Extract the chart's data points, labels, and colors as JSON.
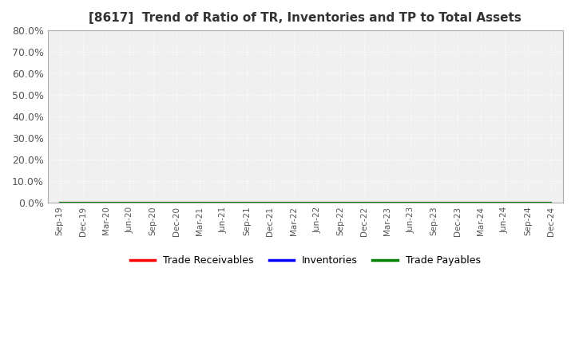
{
  "title": "[8617]  Trend of Ratio of TR, Inventories and TP to Total Assets",
  "title_fontsize": 11,
  "background_color": "#ffffff",
  "plot_background_color": "#f0f0f0",
  "ylim": [
    0.0,
    0.8
  ],
  "yticks": [
    0.0,
    0.1,
    0.2,
    0.3,
    0.4,
    0.5,
    0.6,
    0.7,
    0.8
  ],
  "ytick_labels": [
    "0.0%",
    "10.0%",
    "20.0%",
    "30.0%",
    "40.0%",
    "50.0%",
    "60.0%",
    "70.0%",
    "80.0%"
  ],
  "x_labels": [
    "Sep-19",
    "Dec-19",
    "Mar-20",
    "Jun-20",
    "Sep-20",
    "Dec-20",
    "Mar-21",
    "Jun-21",
    "Sep-21",
    "Dec-21",
    "Mar-22",
    "Jun-22",
    "Sep-22",
    "Dec-22",
    "Mar-23",
    "Jun-23",
    "Sep-23",
    "Dec-23",
    "Mar-24",
    "Jun-24",
    "Sep-24",
    "Dec-24"
  ],
  "series": {
    "Trade Receivables": {
      "color": "#ff0000",
      "values": [
        0,
        0,
        0,
        0,
        0,
        0,
        0,
        0,
        0,
        0,
        0,
        0,
        0,
        0,
        0,
        0,
        0,
        0,
        0,
        0,
        0,
        0
      ]
    },
    "Inventories": {
      "color": "#0000ff",
      "values": [
        0,
        0,
        0,
        0,
        0,
        0,
        0,
        0,
        0,
        0,
        0,
        0,
        0,
        0,
        0,
        0,
        0,
        0,
        0,
        0,
        0,
        0
      ]
    },
    "Trade Payables": {
      "color": "#008000",
      "values": [
        0,
        0,
        0,
        0,
        0,
        0,
        0,
        0,
        0,
        0,
        0,
        0,
        0,
        0,
        0,
        0,
        0,
        0,
        0,
        0,
        0,
        0
      ]
    }
  },
  "legend_entries": [
    "Trade Receivables",
    "Inventories",
    "Trade Payables"
  ],
  "legend_colors": [
    "#ff0000",
    "#0000ff",
    "#008000"
  ],
  "grid_color": "#ffffff",
  "tick_color": "#555555",
  "border_color": "#aaaaaa",
  "spine_color": "#aaaaaa"
}
